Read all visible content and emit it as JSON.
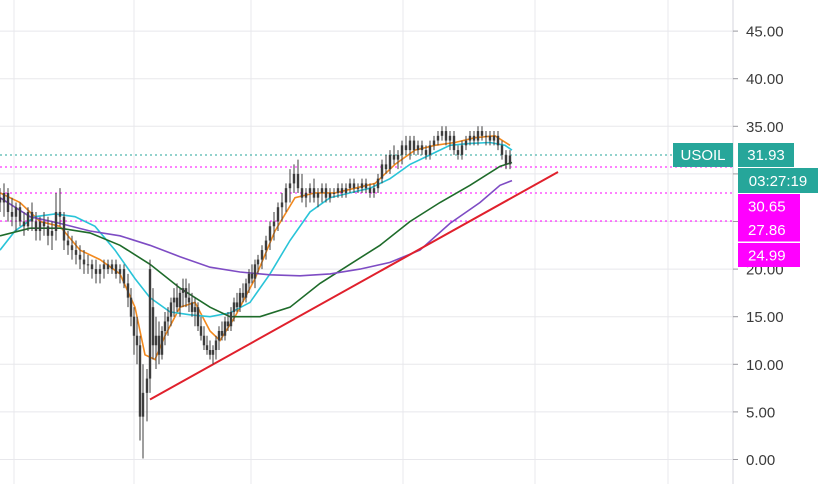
{
  "symbol_label": "USOIL",
  "price_label": "31.93",
  "countdown_label": "03:27:19",
  "colors": {
    "up_tag": "#26a69a",
    "level_tag": "#ff00ff",
    "candles": "#3d3d3d",
    "trendline": "#e0202c",
    "ma_orange": "#f2891e",
    "ma_cyan": "#29c4d8",
    "ma_green": "#1e6b2a",
    "ma_purple": "#7e4cc4",
    "grid": "#e8e8ec",
    "axis_text": "#3a3a3a"
  },
  "chart_data": {
    "type": "candlestick",
    "y_axis": {
      "position": "right",
      "range": [
        -1,
        50
      ],
      "ticks": [
        0,
        5,
        10,
        15,
        20,
        25,
        30,
        35,
        40,
        45
      ],
      "tick_labels": [
        "0.00",
        "5.00",
        "10.00",
        "15.00",
        "20.00",
        "",
        "",
        "35.00",
        "40.00",
        "45.00"
      ]
    },
    "x_axis": {
      "labels_visible": false
    },
    "grid": true,
    "price_levels": [
      {
        "label": "31.93",
        "value": 31.93,
        "color": "#26a69a",
        "style": "dotted",
        "tag": "USOIL"
      },
      {
        "label": "30.65",
        "value": 30.65,
        "color": "#ff00ff",
        "style": "dotted"
      },
      {
        "label": "27.86",
        "value": 27.86,
        "color": "#ff00ff",
        "style": "dotted"
      },
      {
        "label": "24.99",
        "value": 24.99,
        "color": "#ff00ff",
        "style": "none"
      }
    ],
    "trendline": {
      "from": [
        150,
        6.3
      ],
      "to": [
        558,
        30.2
      ]
    },
    "candles": [
      [
        0,
        27.5,
        28.5,
        26,
        27
      ],
      [
        4,
        27,
        29,
        25.5,
        28
      ],
      [
        8,
        28,
        28.5,
        25,
        26
      ],
      [
        12,
        26,
        27.5,
        24.5,
        25.5
      ],
      [
        16,
        25.5,
        27,
        24,
        26.5
      ],
      [
        20,
        26.5,
        27,
        24.5,
        25
      ],
      [
        24,
        25,
        26,
        23.5,
        24.5
      ],
      [
        28,
        24.5,
        26.5,
        24,
        26
      ],
      [
        32,
        26,
        27,
        24,
        25
      ],
      [
        36,
        25,
        26,
        23,
        24
      ],
      [
        40,
        24,
        25.5,
        23,
        25
      ],
      [
        44,
        25,
        26,
        23.5,
        24.5
      ],
      [
        48,
        24.5,
        25.5,
        22.5,
        23.5
      ],
      [
        52,
        23.5,
        25,
        22,
        24
      ],
      [
        56,
        24,
        28,
        23,
        26
      ],
      [
        60,
        26,
        28.5,
        24.5,
        25.5
      ],
      [
        64,
        25.5,
        26,
        22,
        23
      ],
      [
        68,
        23,
        24,
        21.5,
        22.5
      ],
      [
        72,
        22.5,
        23.5,
        21,
        22
      ],
      [
        76,
        22,
        23,
        20.5,
        21.5
      ],
      [
        80,
        21.5,
        22.5,
        20,
        21
      ],
      [
        84,
        21,
        22,
        19.5,
        20.5
      ],
      [
        88,
        20.5,
        21.5,
        19.5,
        20.5
      ],
      [
        92,
        20.5,
        21,
        19,
        20
      ],
      [
        96,
        20,
        21,
        18.5,
        19.5
      ],
      [
        100,
        19.5,
        20.5,
        18.5,
        20
      ],
      [
        104,
        20,
        21,
        19,
        20.5
      ],
      [
        108,
        20.5,
        21,
        19.5,
        20
      ],
      [
        112,
        20,
        21,
        19.5,
        20.5
      ],
      [
        116,
        20.5,
        21,
        19,
        19.5
      ],
      [
        120,
        19.5,
        20.5,
        18.5,
        20
      ],
      [
        124,
        20,
        20.5,
        18,
        18.5
      ],
      [
        128,
        18.5,
        19.5,
        16,
        17
      ],
      [
        131,
        17,
        18,
        14,
        15
      ],
      [
        134,
        15,
        16,
        11,
        13
      ],
      [
        137,
        13,
        15,
        10,
        12
      ],
      [
        140,
        12,
        13,
        2,
        4.5
      ],
      [
        143,
        4.5,
        10,
        0.1,
        7
      ],
      [
        147,
        7,
        9.5,
        4,
        8.5
      ],
      [
        150,
        8.5,
        21,
        7,
        20
      ],
      [
        153,
        16,
        18,
        10.5,
        12
      ],
      [
        156,
        12,
        15,
        9.5,
        13
      ],
      [
        159,
        13,
        14.5,
        10,
        11
      ],
      [
        162,
        11,
        14,
        10.5,
        13.5
      ],
      [
        165,
        13.5,
        15.5,
        12,
        14.5
      ],
      [
        168,
        14.5,
        16,
        13,
        15
      ],
      [
        171,
        15,
        17,
        14,
        16.5
      ],
      [
        174,
        16.5,
        18,
        15,
        17
      ],
      [
        177,
        17,
        18.5,
        15.5,
        16
      ],
      [
        180,
        16,
        18,
        15,
        17.5
      ],
      [
        183,
        17.5,
        19,
        16,
        18
      ],
      [
        186,
        18,
        19,
        16,
        17
      ],
      [
        189,
        17,
        18.5,
        15.5,
        16.5
      ],
      [
        192,
        16.5,
        17.5,
        15,
        15.5
      ],
      [
        195,
        15.5,
        17,
        14,
        16
      ],
      [
        198,
        16,
        16.5,
        13.5,
        14
      ],
      [
        201,
        14,
        15,
        12.5,
        13
      ],
      [
        204,
        13,
        14,
        11.5,
        12
      ],
      [
        207,
        12,
        13,
        11,
        11.5
      ],
      [
        210,
        11.5,
        12.5,
        10.5,
        11
      ],
      [
        213,
        11,
        12,
        10,
        11.5
      ],
      [
        216,
        11.5,
        13,
        10.5,
        12.5
      ],
      [
        219,
        12.5,
        14,
        11.5,
        13.5
      ],
      [
        222,
        13.5,
        14.5,
        12.5,
        13
      ],
      [
        225,
        13,
        15,
        12.5,
        14.5
      ],
      [
        228,
        14.5,
        15.5,
        13.5,
        14
      ],
      [
        231,
        14,
        16,
        13.5,
        15.5
      ],
      [
        234,
        15.5,
        17,
        14.5,
        16.5
      ],
      [
        237,
        16.5,
        17.5,
        15.5,
        16
      ],
      [
        240,
        16,
        18,
        15.5,
        17.5
      ],
      [
        243,
        17.5,
        18.5,
        16.5,
        17
      ],
      [
        246,
        17,
        19,
        16.5,
        18.5
      ],
      [
        249,
        18.5,
        20,
        17.5,
        19.5
      ],
      [
        252,
        19.5,
        20.5,
        18.5,
        19
      ],
      [
        255,
        19,
        21,
        18,
        20.5
      ],
      [
        258,
        20.5,
        21.5,
        19.5,
        21
      ],
      [
        262,
        21,
        22.5,
        20,
        22
      ],
      [
        266,
        22,
        23.5,
        21,
        23
      ],
      [
        270,
        23,
        25,
        22,
        24.5
      ],
      [
        274,
        24.5,
        26,
        23,
        25
      ],
      [
        278,
        25,
        27,
        24,
        26.5
      ],
      [
        282,
        26.5,
        28,
        25,
        27
      ],
      [
        286,
        27,
        29,
        26,
        28.5
      ],
      [
        290,
        28.5,
        30.5,
        27,
        29
      ],
      [
        294,
        29,
        31,
        28,
        30
      ],
      [
        298,
        30,
        31.5,
        28,
        28.5
      ],
      [
        302,
        28.5,
        30,
        27,
        27.5
      ],
      [
        306,
        27.5,
        28.5,
        26.5,
        28
      ],
      [
        310,
        28,
        29,
        27,
        28.5
      ],
      [
        314,
        28.5,
        29.5,
        27,
        27.5
      ],
      [
        318,
        27.5,
        28.5,
        26.5,
        28
      ],
      [
        322,
        28,
        29,
        27,
        28.5
      ],
      [
        326,
        28.5,
        29,
        27,
        27.5
      ],
      [
        330,
        27.5,
        28.5,
        27,
        28
      ],
      [
        334,
        28,
        28.5,
        27.5,
        28
      ],
      [
        338,
        28,
        29,
        27.5,
        28.5
      ],
      [
        342,
        28.5,
        29,
        27.5,
        28
      ],
      [
        346,
        28,
        29,
        27.5,
        28.5
      ],
      [
        350,
        28.5,
        29.5,
        28,
        29
      ],
      [
        354,
        29,
        29.5,
        28,
        28.5
      ],
      [
        358,
        28.5,
        29,
        28,
        28.5
      ],
      [
        362,
        28.5,
        29.5,
        28,
        29
      ],
      [
        366,
        29,
        29.5,
        28,
        28.5
      ],
      [
        370,
        28.5,
        29,
        27.5,
        28
      ],
      [
        374,
        28,
        29,
        27.5,
        28.5
      ],
      [
        378,
        28.5,
        30,
        28,
        29.5
      ],
      [
        382,
        29.5,
        31.5,
        29,
        31
      ],
      [
        386,
        31,
        32,
        30,
        30.5
      ],
      [
        390,
        30.5,
        32.5,
        30,
        32
      ],
      [
        394,
        32,
        33,
        31,
        31.5
      ],
      [
        398,
        31.5,
        32.5,
        30.5,
        32
      ],
      [
        402,
        32,
        33.5,
        31,
        33
      ],
      [
        406,
        33,
        34,
        32,
        32.5
      ],
      [
        410,
        32.5,
        34,
        31.5,
        33.5
      ],
      [
        414,
        33.5,
        34,
        32,
        32.5
      ],
      [
        418,
        32.5,
        33.5,
        32,
        33
      ],
      [
        422,
        33,
        33.5,
        32,
        32.5
      ],
      [
        426,
        32.5,
        33,
        31.5,
        32
      ],
      [
        430,
        32,
        33.5,
        31.5,
        33
      ],
      [
        434,
        33,
        34,
        32.5,
        33.5
      ],
      [
        438,
        33.5,
        34.5,
        33,
        34
      ],
      [
        442,
        34,
        35,
        33.5,
        34.5
      ],
      [
        446,
        34.5,
        35,
        33,
        33.5
      ],
      [
        450,
        33.5,
        34.5,
        32.5,
        34
      ],
      [
        454,
        34,
        34.5,
        32,
        32.5
      ],
      [
        458,
        32.5,
        33,
        31.5,
        32
      ],
      [
        462,
        32,
        33.5,
        31.5,
        33
      ],
      [
        466,
        33,
        34,
        32.5,
        33.5
      ],
      [
        470,
        33.5,
        34.5,
        33,
        34
      ],
      [
        474,
        34,
        34.5,
        33,
        33.5
      ],
      [
        478,
        33.5,
        35,
        33,
        34.5
      ],
      [
        482,
        34.5,
        35,
        33.5,
        34
      ],
      [
        486,
        34,
        34.5,
        33,
        34
      ],
      [
        490,
        34,
        34.5,
        33,
        33.5
      ],
      [
        494,
        33.5,
        34.5,
        33,
        34
      ],
      [
        498,
        34,
        34.5,
        32.5,
        33
      ],
      [
        502,
        33,
        33.5,
        31.5,
        32
      ],
      [
        506,
        32,
        32.5,
        30.5,
        31
      ],
      [
        510,
        31,
        32.5,
        30.5,
        31.93
      ]
    ],
    "moving_averages": [
      {
        "color": "#f2891e",
        "points": [
          [
            0,
            28
          ],
          [
            20,
            27
          ],
          [
            40,
            25
          ],
          [
            60,
            24.5
          ],
          [
            80,
            22
          ],
          [
            100,
            21
          ],
          [
            120,
            19.5
          ],
          [
            135,
            16
          ],
          [
            145,
            11
          ],
          [
            155,
            10.5
          ],
          [
            165,
            13
          ],
          [
            180,
            16
          ],
          [
            195,
            16.5
          ],
          [
            210,
            13.5
          ],
          [
            220,
            12.5
          ],
          [
            235,
            15
          ],
          [
            255,
            19
          ],
          [
            275,
            24
          ],
          [
            295,
            27.5
          ],
          [
            315,
            28
          ],
          [
            335,
            28
          ],
          [
            355,
            28.5
          ],
          [
            375,
            29
          ],
          [
            395,
            31
          ],
          [
            415,
            32.5
          ],
          [
            435,
            33
          ],
          [
            455,
            33.3
          ],
          [
            475,
            33.8
          ],
          [
            495,
            34
          ],
          [
            510,
            33
          ]
        ]
      },
      {
        "color": "#29c4d8",
        "points": [
          [
            0,
            22
          ],
          [
            15,
            24
          ],
          [
            35,
            25.5
          ],
          [
            55,
            25.8
          ],
          [
            75,
            25.5
          ],
          [
            95,
            24.5
          ],
          [
            115,
            22
          ],
          [
            135,
            19
          ],
          [
            150,
            17
          ],
          [
            170,
            15.5
          ],
          [
            190,
            15.2
          ],
          [
            210,
            15
          ],
          [
            230,
            15.4
          ],
          [
            250,
            16.5
          ],
          [
            270,
            19.5
          ],
          [
            290,
            23
          ],
          [
            310,
            26
          ],
          [
            330,
            27.5
          ],
          [
            350,
            28
          ],
          [
            370,
            28.5
          ],
          [
            390,
            29.5
          ],
          [
            410,
            31
          ],
          [
            430,
            32
          ],
          [
            450,
            33
          ],
          [
            470,
            33.2
          ],
          [
            490,
            33.3
          ],
          [
            505,
            33
          ],
          [
            512,
            32.5
          ]
        ]
      },
      {
        "color": "#1e6b2a",
        "points": [
          [
            0,
            23.5
          ],
          [
            30,
            24.3
          ],
          [
            60,
            24.3
          ],
          [
            90,
            23.8
          ],
          [
            120,
            22.5
          ],
          [
            150,
            20.5
          ],
          [
            180,
            18
          ],
          [
            210,
            16
          ],
          [
            230,
            15
          ],
          [
            260,
            15
          ],
          [
            290,
            16
          ],
          [
            320,
            18.5
          ],
          [
            350,
            20.5
          ],
          [
            380,
            22.5
          ],
          [
            410,
            25
          ],
          [
            440,
            27
          ],
          [
            470,
            28.8
          ],
          [
            500,
            30.8
          ],
          [
            512,
            31.2
          ]
        ]
      },
      {
        "color": "#7e4cc4",
        "points": [
          [
            0,
            27.5
          ],
          [
            30,
            25.5
          ],
          [
            60,
            24.8
          ],
          [
            90,
            24
          ],
          [
            120,
            23.5
          ],
          [
            150,
            22.5
          ],
          [
            180,
            21.3
          ],
          [
            210,
            20.2
          ],
          [
            240,
            19.7
          ],
          [
            270,
            19.4
          ],
          [
            300,
            19.3
          ],
          [
            330,
            19.5
          ],
          [
            360,
            20
          ],
          [
            390,
            20.7
          ],
          [
            420,
            22
          ],
          [
            450,
            24.8
          ],
          [
            480,
            27
          ],
          [
            500,
            28.8
          ],
          [
            512,
            29.3
          ]
        ]
      }
    ]
  }
}
